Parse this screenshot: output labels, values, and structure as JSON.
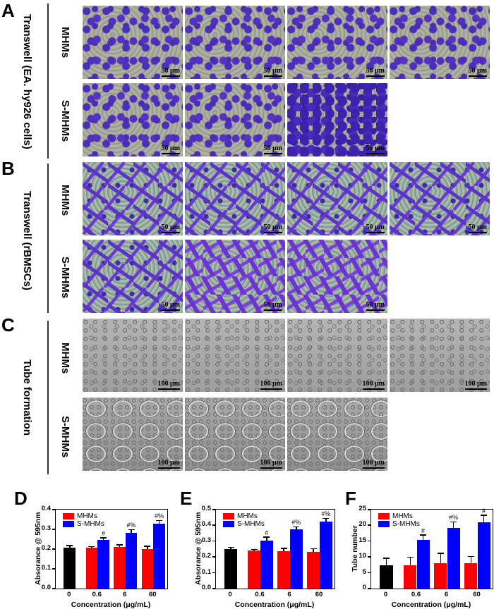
{
  "figure": {
    "panels": {
      "A": {
        "letter": "A",
        "title": "Transwell (EA. hy926 cells)",
        "rows": [
          "MHMs",
          "S-MHMs"
        ],
        "scale_bar": "50 μm"
      },
      "B": {
        "letter": "B",
        "title": "Transwell (rBMSCs)",
        "rows": [
          "MHMs",
          "S-MHMs"
        ],
        "scale_bar": "50 μm"
      },
      "C": {
        "letter": "C",
        "title": "Tube formation",
        "rows": [
          "MHMs",
          "S-MHMs"
        ],
        "scale_bar": "100 μm"
      }
    },
    "grid_note": "Row 1 (MHMs) has 4 images: control(0), 0.6, 6, 60 μg/mL; Row 2 (S-MHMs) has 3 images: 0.6, 6, 60 μg/mL"
  },
  "chart_data": [
    {
      "panel": "D",
      "type": "bar",
      "title": "",
      "categories": [
        "0",
        "0.6",
        "6",
        "60"
      ],
      "xlabel": "Concentration (μg/mL)",
      "ylabel": "Absorance @ 595nm",
      "ylim": [
        0,
        0.4
      ],
      "yticks": [
        "0.0",
        "0.1",
        "0.2",
        "0.3",
        "0.4"
      ],
      "legend": [
        "MHMs",
        "S-MHMs"
      ],
      "legend_position": "top-left",
      "control": {
        "category": "0",
        "value": 0.207,
        "error": 0.008,
        "color": "#000000"
      },
      "series": [
        {
          "name": "MHMs",
          "color": "#ff0000",
          "values": [
            null,
            0.208,
            0.212,
            0.199
          ],
          "errors": [
            null,
            0.002,
            0.006,
            0.012
          ],
          "annotations": [
            null,
            "",
            "",
            ""
          ]
        },
        {
          "name": "S-MHMs",
          "color": "#0000ff",
          "values": [
            null,
            0.247,
            0.281,
            0.327
          ],
          "errors": [
            null,
            0.007,
            0.014,
            0.015
          ],
          "annotations": [
            null,
            "#",
            "#%",
            "#%"
          ]
        }
      ]
    },
    {
      "panel": "E",
      "type": "bar",
      "title": "",
      "categories": [
        "0",
        "0.6",
        "6",
        "60"
      ],
      "xlabel": "Concentration (μg/mL)",
      "ylabel": "Absorance @ 595nm",
      "ylim": [
        0,
        0.5
      ],
      "yticks": [
        "0.0",
        "0.1",
        "0.2",
        "0.3",
        "0.4",
        "0.5"
      ],
      "legend": [
        "MHMs",
        "S-MHMs"
      ],
      "legend_position": "top-left",
      "control": {
        "category": "0",
        "value": 0.25,
        "error": 0.008,
        "color": "#000000"
      },
      "series": [
        {
          "name": "MHMs",
          "color": "#ff0000",
          "values": [
            null,
            0.24,
            0.238,
            0.234
          ],
          "errors": [
            null,
            0.004,
            0.013,
            0.014
          ],
          "annotations": [
            null,
            "",
            "",
            ""
          ]
        },
        {
          "name": "S-MHMs",
          "color": "#0000ff",
          "values": [
            null,
            0.305,
            0.376,
            0.424
          ],
          "errors": [
            null,
            0.017,
            0.011,
            0.016
          ],
          "annotations": [
            null,
            "#",
            "#%",
            "#%"
          ]
        }
      ]
    },
    {
      "panel": "F",
      "type": "bar",
      "title": "",
      "categories": [
        "0",
        "0.6",
        "6",
        "60"
      ],
      "xlabel": "Concentration (μg/mL)",
      "ylabel": "Tube number",
      "ylim": [
        0,
        25
      ],
      "yticks": [
        "0",
        "5",
        "10",
        "15",
        "20",
        "25"
      ],
      "legend": [
        "MHMs",
        "S-MHMs"
      ],
      "legend_position": "top-left",
      "control": {
        "category": "0",
        "value": 7.3,
        "error": 2.1,
        "color": "#000000"
      },
      "series": [
        {
          "name": "MHMs",
          "color": "#ff0000",
          "values": [
            null,
            7.3,
            8.0,
            8.0
          ],
          "errors": [
            null,
            2.5,
            3.0,
            2.0
          ],
          "annotations": [
            null,
            "",
            "",
            ""
          ]
        },
        {
          "name": "S-MHMs",
          "color": "#0000ff",
          "values": [
            null,
            15.3,
            19.3,
            21.0
          ],
          "errors": [
            null,
            1.5,
            1.6,
            2.0
          ],
          "annotations": [
            null,
            "#",
            "#%",
            "#"
          ]
        }
      ]
    }
  ]
}
